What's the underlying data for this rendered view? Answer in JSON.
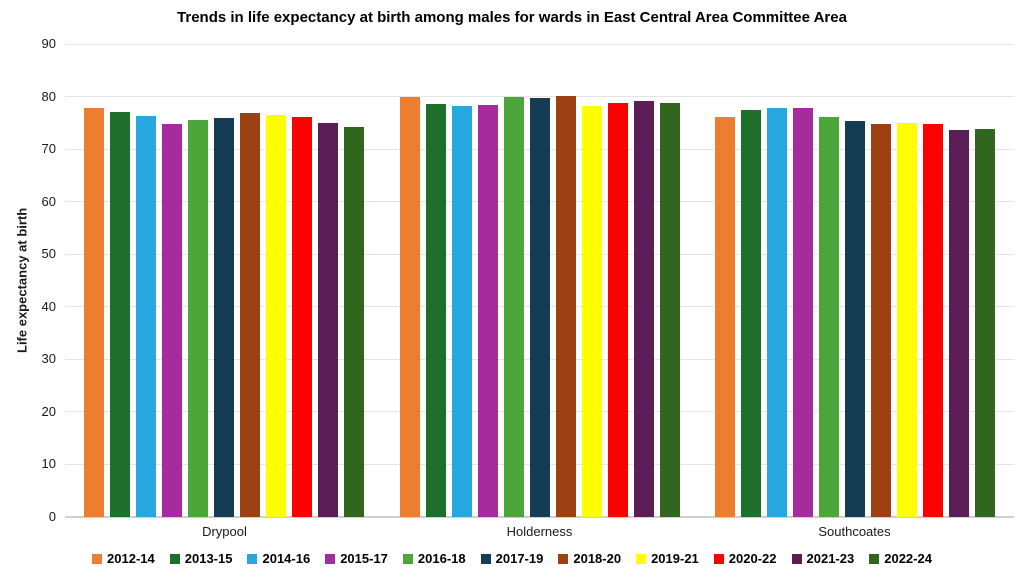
{
  "title": "Trends in life expectancy at birth among males for wards in East Central Area Committee Area",
  "chart_data": {
    "type": "bar",
    "title": "Trends in life expectancy at birth among males for wards in East Central Area Committee Area",
    "xlabel": "",
    "ylabel": "Life expectancy at birth",
    "ylim": [
      0,
      90
    ],
    "ytick_step": 10,
    "grid": true,
    "legend_position": "bottom",
    "categories": [
      "Drypool",
      "Holderness",
      "Southcoates"
    ],
    "series": [
      {
        "name": "2012-14",
        "color": "#ED7D31",
        "values": [
          77.8,
          79.9,
          76.1
        ]
      },
      {
        "name": "2013-15",
        "color": "#1E6F2A",
        "values": [
          77.0,
          78.6,
          77.4
        ]
      },
      {
        "name": "2014-16",
        "color": "#27A7DF",
        "values": [
          76.3,
          78.2,
          77.8
        ]
      },
      {
        "name": "2015-17",
        "color": "#A62C9E",
        "values": [
          74.7,
          78.4,
          77.9
        ]
      },
      {
        "name": "2016-18",
        "color": "#4CA639",
        "values": [
          75.5,
          79.9,
          76.2
        ]
      },
      {
        "name": "2017-19",
        "color": "#143C55",
        "values": [
          75.9,
          79.8,
          75.4
        ]
      },
      {
        "name": "2018-20",
        "color": "#9C4111",
        "values": [
          76.9,
          80.1,
          74.8
        ]
      },
      {
        "name": "2019-21",
        "color": "#FFFF00",
        "values": [
          76.5,
          78.3,
          75.0
        ]
      },
      {
        "name": "2020-22",
        "color": "#FF0000",
        "values": [
          76.2,
          78.8,
          74.8
        ]
      },
      {
        "name": "2021-23",
        "color": "#5A1D58",
        "values": [
          75.0,
          79.2,
          73.6
        ]
      },
      {
        "name": "2022-24",
        "color": "#31661F",
        "values": [
          74.3,
          78.7,
          73.9
        ]
      }
    ]
  },
  "colors": {
    "gridline": "#e4e4e4",
    "axis_line": "#cfcfcf",
    "text": "#1a1a1a"
  }
}
